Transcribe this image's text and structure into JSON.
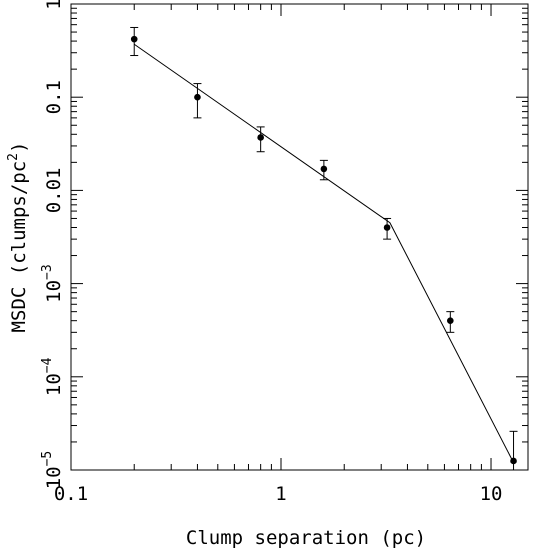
{
  "chart_data": {
    "type": "scatter",
    "xlabel": "Clump separation (pc)",
    "ylabel": {
      "prefix": "MSDC (clumps/pc",
      "superscript": "2",
      "suffix": ")"
    },
    "x_scale": "log",
    "y_scale": "log",
    "xlim": [
      0.1,
      15
    ],
    "ylim": [
      1e-05,
      1
    ],
    "grid": false,
    "x_ticks": [
      {
        "value": 0.1,
        "label": "0.1"
      },
      {
        "value": 1,
        "label": "1"
      },
      {
        "value": 10,
        "label": "10"
      }
    ],
    "y_ticks": [
      {
        "value": 1,
        "base": "1",
        "exp": ""
      },
      {
        "value": 0.1,
        "base": "0.1",
        "exp": ""
      },
      {
        "value": 0.01,
        "base": "0.01",
        "exp": ""
      },
      {
        "value": 0.001,
        "base": "10",
        "exp": "−3"
      },
      {
        "value": 0.0001,
        "base": "10",
        "exp": "−4"
      },
      {
        "value": 1e-05,
        "base": "10",
        "exp": "−5"
      }
    ],
    "points": [
      {
        "x": 0.2,
        "y": 0.42,
        "err_low": 0.28,
        "err_high": 0.56
      },
      {
        "x": 0.4,
        "y": 0.1,
        "err_low": 0.06,
        "err_high": 0.14
      },
      {
        "x": 0.8,
        "y": 0.037,
        "err_low": 0.026,
        "err_high": 0.048
      },
      {
        "x": 1.6,
        "y": 0.017,
        "err_low": 0.013,
        "err_high": 0.021
      },
      {
        "x": 3.2,
        "y": 0.004,
        "err_low": 0.003,
        "err_high": 0.005
      },
      {
        "x": 6.4,
        "y": 0.0004,
        "err_low": 0.0003,
        "err_high": 0.0005
      },
      {
        "x": 12.8,
        "y": 1.25e-05,
        "err_low": 1e-05,
        "err_high": 2.6e-05
      }
    ],
    "fit_line": [
      {
        "x": 0.2,
        "y": 0.37
      },
      {
        "x": 3.3,
        "y": 0.0045
      },
      {
        "x": 12.8,
        "y": 1.2e-05
      }
    ]
  }
}
